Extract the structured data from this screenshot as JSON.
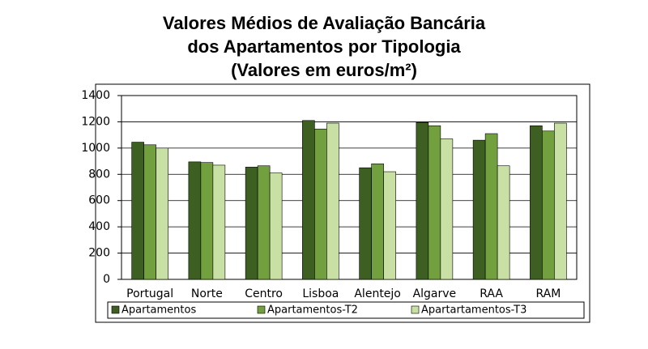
{
  "chart_data": {
    "type": "bar",
    "title": [
      "Valores Médios de Avaliação Bancária",
      "dos Apartamentos por Tipologia",
      "(Valores em euros/m²)"
    ],
    "categories": [
      "Portugal",
      "Norte",
      "Centro",
      "Lisboa",
      "Alentejo",
      "Algarve",
      "RAA",
      "RAM"
    ],
    "series": [
      {
        "name": "Apartamentos",
        "color": "#3d5f22",
        "values": [
          1045,
          895,
          855,
          1210,
          850,
          1195,
          1060,
          1170
        ]
      },
      {
        "name": "Apartamentos-T2",
        "color": "#72a03e",
        "values": [
          1025,
          890,
          865,
          1145,
          880,
          1170,
          1110,
          1130
        ]
      },
      {
        "name": "Apartartamentos-T3",
        "color": "#c8e0a4",
        "values": [
          1000,
          870,
          810,
          1190,
          820,
          1070,
          865,
          1190
        ]
      }
    ],
    "ylim": [
      0,
      1400
    ],
    "yticks": [
      0,
      200,
      400,
      600,
      800,
      1000,
      1200,
      1400
    ],
    "grid": true
  }
}
